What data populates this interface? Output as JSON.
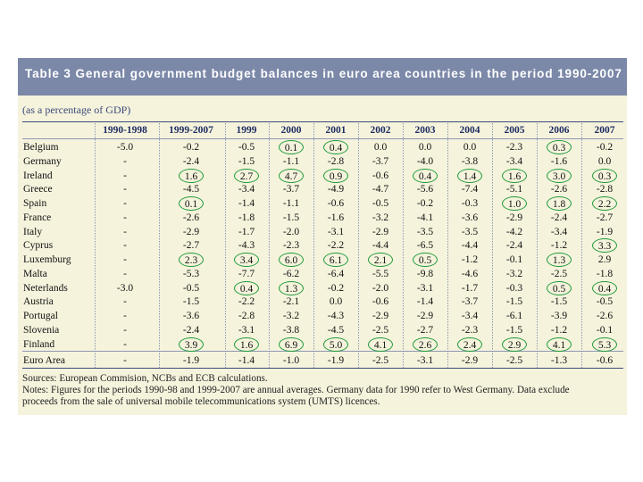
{
  "title": "Table 3 General government budget balances in euro area countries in the period 1990-2007",
  "subtitle": "(as a percentage of GDP)",
  "columns": [
    "1990-1998",
    "1999-2007",
    "1999",
    "2000",
    "2001",
    "2002",
    "2003",
    "2004",
    "2005",
    "2006",
    "2007"
  ],
  "rows": [
    {
      "country": "Belgium",
      "values": [
        "-5.0",
        "-0.2",
        "-0.5",
        "0.1",
        "0.4",
        "0.0",
        "0.0",
        "0.0",
        "-2.3",
        "0.3",
        "-0.2"
      ],
      "highlighted": [
        3,
        4,
        9
      ]
    },
    {
      "country": "Germany",
      "values": [
        "-",
        "-2.4",
        "-1.5",
        "-1.1",
        "-2.8",
        "-3.7",
        "-4.0",
        "-3.8",
        "-3.4",
        "-1.6",
        "0.0"
      ],
      "highlighted": []
    },
    {
      "country": "Ireland",
      "values": [
        "-",
        "1.6",
        "2.7",
        "4.7",
        "0.9",
        "-0.6",
        "0.4",
        "1.4",
        "1.6",
        "3.0",
        "0.3"
      ],
      "highlighted": [
        1,
        2,
        3,
        4,
        6,
        7,
        8,
        9,
        10
      ]
    },
    {
      "country": "Greece",
      "values": [
        "-",
        "-4.5",
        "-3.4",
        "-3.7",
        "-4.9",
        "-4.7",
        "-5.6",
        "-7.4",
        "-5.1",
        "-2.6",
        "-2.8"
      ],
      "highlighted": []
    },
    {
      "country": "Spain",
      "values": [
        "-",
        "0.1",
        "-1.4",
        "-1.1",
        "-0.6",
        "-0.5",
        "-0.2",
        "-0.3",
        "1.0",
        "1.8",
        "2.2"
      ],
      "highlighted": [
        1,
        8,
        9,
        10
      ]
    },
    {
      "country": "France",
      "values": [
        "-",
        "-2.6",
        "-1.8",
        "-1.5",
        "-1.6",
        "-3.2",
        "-4.1",
        "-3.6",
        "-2.9",
        "-2.4",
        "-2.7"
      ],
      "highlighted": []
    },
    {
      "country": "Italy",
      "values": [
        "-",
        "-2.9",
        "-1.7",
        "-2.0",
        "-3.1",
        "-2.9",
        "-3.5",
        "-3.5",
        "-4.2",
        "-3.4",
        "-1.9"
      ],
      "highlighted": []
    },
    {
      "country": "Cyprus",
      "values": [
        "-",
        "-2.7",
        "-4.3",
        "-2.3",
        "-2.2",
        "-4.4",
        "-6.5",
        "-4.4",
        "-2.4",
        "-1.2",
        "3.3"
      ],
      "highlighted": [
        10
      ]
    },
    {
      "country": "Luxemburg",
      "values": [
        "-",
        "2.3",
        "3.4",
        "6.0",
        "6.1",
        "2.1",
        "0.5",
        "-1.2",
        "-0.1",
        "1.3",
        "2.9"
      ],
      "highlighted": [
        1,
        2,
        3,
        4,
        5,
        6,
        9
      ]
    },
    {
      "country": "Malta",
      "values": [
        "-",
        "-5.3",
        "-7.7",
        "-6.2",
        "-6.4",
        "-5.5",
        "-9.8",
        "-4.6",
        "-3.2",
        "-2.5",
        "-1.8"
      ],
      "highlighted": []
    },
    {
      "country": "Neterlands",
      "values": [
        "-3.0",
        "-0.5",
        "0.4",
        "1.3",
        "-0.2",
        "-2.0",
        "-3.1",
        "-1.7",
        "-0.3",
        "0.5",
        "0.4"
      ],
      "highlighted": [
        2,
        3,
        9,
        10
      ]
    },
    {
      "country": "Austria",
      "values": [
        "-",
        "-1.5",
        "-2.2",
        "-2.1",
        "0.0",
        "-0.6",
        "-1.4",
        "-3.7",
        "-1.5",
        "-1.5",
        "-0.5"
      ],
      "highlighted": []
    },
    {
      "country": "Portugal",
      "values": [
        "-",
        "-3.6",
        "-2.8",
        "-3.2",
        "-4.3",
        "-2.9",
        "-2.9",
        "-3.4",
        "-6.1",
        "-3.9",
        "-2.6"
      ],
      "highlighted": []
    },
    {
      "country": "Slovenia",
      "values": [
        "-",
        "-2.4",
        "-3.1",
        "-3.8",
        "-4.5",
        "-2.5",
        "-2.7",
        "-2.3",
        "-1.5",
        "-1.2",
        "-0.1"
      ],
      "highlighted": []
    },
    {
      "country": "Finland",
      "values": [
        "-",
        "3.9",
        "1.6",
        "6.9",
        "5.0",
        "4.1",
        "2.6",
        "2.4",
        "2.9",
        "4.1",
        "5.3"
      ],
      "highlighted": [
        1,
        2,
        3,
        4,
        5,
        6,
        7,
        8,
        9,
        10
      ]
    }
  ],
  "total_row": {
    "country": "Euro Area",
    "values": [
      "-",
      "-1.9",
      "-1.4",
      "-1.0",
      "-1.9",
      "-2.5",
      "-3.1",
      "-2.9",
      "-2.5",
      "-1.3",
      "-0.6"
    ]
  },
  "notes": {
    "sources": "Sources: European Commision, NCBs and ECB calculations.",
    "notes_line1": "Notes: Figures for the periods 1990-98 and 1999-2007 are annual averages. Germany data for 1990 refer to West Germany. Data exclude",
    "notes_line2": "proceeds from the sale of universal mobile telecommunications system (UMTS) licences."
  },
  "colors": {
    "title_bar": "#7b88a8",
    "panel": "#f5f3dc",
    "highlight_circle": "#1f9a3a",
    "header_text": "#1f2d63"
  }
}
